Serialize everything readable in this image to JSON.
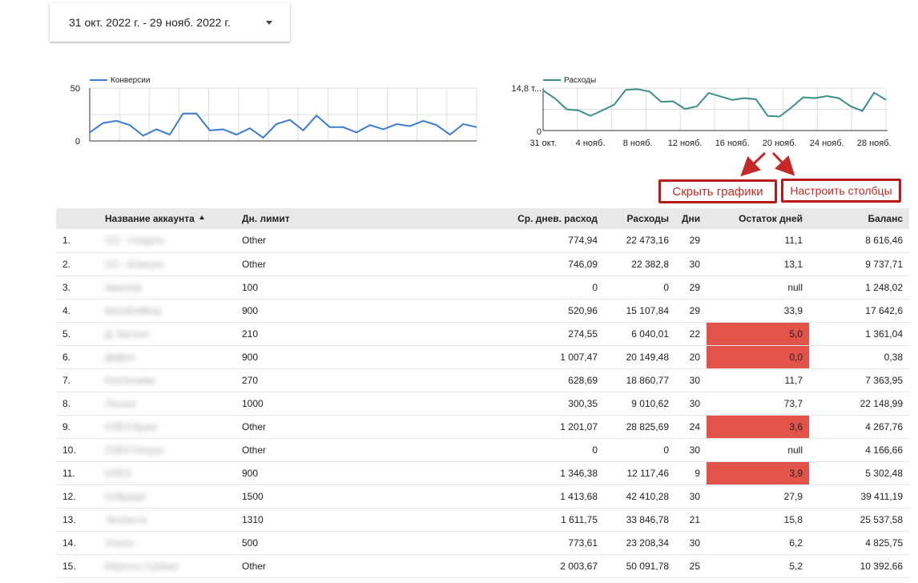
{
  "date_range": {
    "label": "31 окт. 2022 г. - 29 нояб. 2022 г."
  },
  "colors": {
    "line_conversions": "#3b7bd4",
    "line_spend": "#3a8f8a",
    "warn_cell": "#e2534a",
    "annotation": "#c62828"
  },
  "chart_data": [
    {
      "type": "line",
      "title": "",
      "legend": "top-left",
      "series": [
        {
          "name": "Конверсии",
          "values": [
            8,
            17,
            19,
            15,
            5,
            11,
            6,
            26,
            26,
            10,
            11,
            6,
            12,
            3,
            16,
            20,
            10,
            24,
            13,
            13,
            8,
            15,
            11,
            16,
            14,
            19,
            15,
            6,
            16,
            13
          ]
        }
      ],
      "ylim": [
        0,
        50
      ],
      "y_ticks": [
        "50",
        "0"
      ],
      "grid": true
    },
    {
      "type": "line",
      "title": "",
      "legend": "top-left",
      "series": [
        {
          "name": "Расходы",
          "values": [
            14.0,
            11.2,
            7.4,
            7.0,
            5.1,
            7.0,
            9.0,
            14.2,
            14.4,
            13.6,
            10.0,
            10.2,
            7.5,
            8.4,
            13.1,
            11.9,
            10.7,
            11.3,
            10.9,
            5.1,
            4.9,
            8.0,
            11.6,
            11.3,
            12.0,
            11.3,
            8.5,
            6.8,
            13.2,
            10.7
          ]
        }
      ],
      "ylim": [
        0,
        14.8
      ],
      "y_ticks": [
        "14,8 т...",
        "0"
      ],
      "x_tick_labels": [
        "31 окт.",
        "4 нояб.",
        "8 нояб.",
        "12 нояб.",
        "16 нояб.",
        "20 нояб.",
        "24 нояб.",
        "28 нояб."
      ],
      "grid": true
    }
  ],
  "buttons": {
    "hide_charts": "Скрыть графики",
    "configure_columns": "Настроить столбцы"
  },
  "table": {
    "headers": {
      "name": "Название аккаунта",
      "limit": "Дн. лимит",
      "avg": "Ср. днев. расход",
      "spend": "Расходы",
      "days": "Дни",
      "remaining": "Остаток дней",
      "balance": "Баланс"
    },
    "rows": [
      {
        "num": "1.",
        "name": "СО - Скидоте",
        "limit": "Other",
        "avg": "774,94",
        "spend": "22 473,16",
        "days": "29",
        "remaining": "11,1",
        "balance": "8 616,46",
        "warn": false
      },
      {
        "num": "2.",
        "name": "СО - Блишон",
        "limit": "Other",
        "avg": "746,09",
        "spend": "22 382,8",
        "days": "30",
        "remaining": "13,1",
        "balance": "9 737,71",
        "warn": false
      },
      {
        "num": "3.",
        "name": "Авиатор",
        "limit": "100",
        "avg": "0",
        "spend": "0",
        "days": "29",
        "remaining": "null",
        "balance": "1 248,02",
        "warn": false
      },
      {
        "num": "4.",
        "name": "БеллБейБер",
        "limit": "900",
        "avg": "520,96",
        "spend": "15 107,84",
        "days": "29",
        "remaining": "33,9",
        "balance": "17 642,6",
        "warn": false
      },
      {
        "num": "5.",
        "name": "Д. Батлон",
        "limit": "210",
        "avg": "274,55",
        "spend": "6 040,01",
        "days": "22",
        "remaining": "5,0",
        "balance": "1 361,04",
        "warn": true
      },
      {
        "num": "6.",
        "name": "Дафон",
        "limit": "900",
        "avg": "1 007,47",
        "spend": "20 149,48",
        "days": "20",
        "remaining": "0,0",
        "balance": "0,38",
        "warn": true
      },
      {
        "num": "7.",
        "name": "Колленими",
        "limit": "270",
        "avg": "628,69",
        "spend": "18 860,77",
        "days": "30",
        "remaining": "11,7",
        "balance": "7 363,95",
        "warn": false
      },
      {
        "num": "8.",
        "name": "Лагуна",
        "limit": "1000",
        "avg": "300,35",
        "spend": "9 010,62",
        "days": "30",
        "remaining": "73,7",
        "balance": "22 148,99",
        "warn": false
      },
      {
        "num": "9.",
        "name": "ОЗЕЗ Кранг",
        "limit": "Other",
        "avg": "1 201,07",
        "spend": "28 825,69",
        "days": "24",
        "remaining": "3,6",
        "balance": "4 267,76",
        "warn": true
      },
      {
        "num": "10.",
        "name": "ОЗЕЗ Ольшо",
        "limit": "Other",
        "avg": "0",
        "spend": "0",
        "days": "30",
        "remaining": "null",
        "balance": "4 166,66",
        "warn": false
      },
      {
        "num": "11.",
        "name": "ОЗЕЗ",
        "limit": "900",
        "avg": "1 346,38",
        "spend": "12 117,46",
        "days": "9",
        "remaining": "3,9",
        "balance": "5 302,48",
        "warn": true
      },
      {
        "num": "12.",
        "name": "Хобруарт",
        "limit": "1500",
        "avg": "1 413,68",
        "spend": "42 410,28",
        "days": "30",
        "remaining": "27,9",
        "balance": "39 411,19",
        "warn": false
      },
      {
        "num": "13.",
        "name": "Эколасти",
        "limit": "1310",
        "avg": "1 611,75",
        "spend": "33 846,78",
        "days": "21",
        "remaining": "15,8",
        "balance": "25 537,58",
        "warn": false
      },
      {
        "num": "14.",
        "name": "Этагос",
        "limit": "500",
        "avg": "773,61",
        "spend": "23 208,34",
        "days": "30",
        "remaining": "6,2",
        "balance": "4 825,75",
        "warn": false
      },
      {
        "num": "15.",
        "name": "Юристы Сураны",
        "limit": "Other",
        "avg": "2 003,67",
        "spend": "50 091,78",
        "days": "25",
        "remaining": "5,2",
        "balance": "10 392,66",
        "warn": false
      }
    ]
  }
}
